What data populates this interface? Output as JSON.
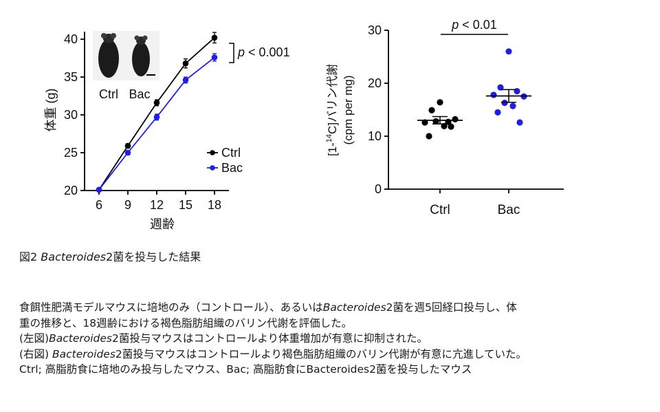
{
  "chart_data": [
    {
      "type": "line",
      "xlabel": "週齢",
      "ylabel": "体重 (g)",
      "x": [
        6,
        9,
        12,
        15,
        18
      ],
      "xlim": [
        4.5,
        19.5
      ],
      "ylim": [
        20,
        41
      ],
      "yticks": [
        20,
        25,
        30,
        35,
        40
      ],
      "series": [
        {
          "name": "Ctrl",
          "color": "#000000",
          "values": [
            20.1,
            25.9,
            31.6,
            36.8,
            40.2
          ],
          "errors": [
            0.2,
            0.3,
            0.4,
            0.6,
            0.7
          ]
        },
        {
          "name": "Bac",
          "color": "#1f1fe6",
          "values": [
            20.1,
            25.0,
            29.7,
            34.6,
            37.6
          ],
          "errors": [
            0.2,
            0.3,
            0.4,
            0.4,
            0.5
          ]
        }
      ],
      "legend": "bottom-right",
      "annotation": "p < 0.001",
      "photo_labels": [
        "Ctrl",
        "Bac"
      ]
    },
    {
      "type": "scatter",
      "ylabel_line1": "[1-14C]バリン代謝",
      "ylabel_line2": "(cpm per mg)",
      "categories": [
        "Ctrl",
        "Bac"
      ],
      "ylim": [
        0,
        30
      ],
      "yticks": [
        0,
        10,
        20,
        30
      ],
      "groups": [
        {
          "name": "Ctrl",
          "color": "#000000",
          "mean": 13.0,
          "sem": 0.7,
          "points": [
            16.4,
            14.9,
            12.7,
            12.6,
            13.2,
            12.8,
            11.9,
            10.0,
            11.8
          ]
        },
        {
          "name": "Bac",
          "color": "#1f1fe6",
          "mean": 17.6,
          "sem": 1.2,
          "points": [
            26.0,
            19.2,
            18.5,
            17.8,
            17.5,
            16.3,
            15.7,
            14.5,
            12.6
          ]
        }
      ],
      "annotation": "p < 0.01"
    }
  ],
  "caption": {
    "prefix": "図2 ",
    "italic": "Bacteroides",
    "suffix": "2菌を投与した結果"
  },
  "description": [
    {
      "a": "食餌性肥満モデルマウスに培地のみ（コントロール）、あるいは",
      "i": "Bacteroides",
      "b": "2菌を週5回経口投与し、体"
    },
    {
      "a": "重の推移と、18週齢における褐色脂肪組織のバリン代謝を評価した。",
      "i": "",
      "b": ""
    },
    {
      "a": "(左図)",
      "i": "Bacteroides",
      "b": "2菌投与マウスはコントロールより体重増加が有意に抑制された。"
    },
    {
      "a": "(右図) ",
      "i": "Bacteroides",
      "b": "2菌投与マウスはコントロールより褐色脂肪組織のバリン代謝が有意に亢進していた。"
    },
    {
      "a": "Ctrl; 高脂肪食に培地のみ投与したマウス、Bac; 高脂肪食にBacteroides2菌を投与したマウス",
      "i": "",
      "b": ""
    }
  ]
}
